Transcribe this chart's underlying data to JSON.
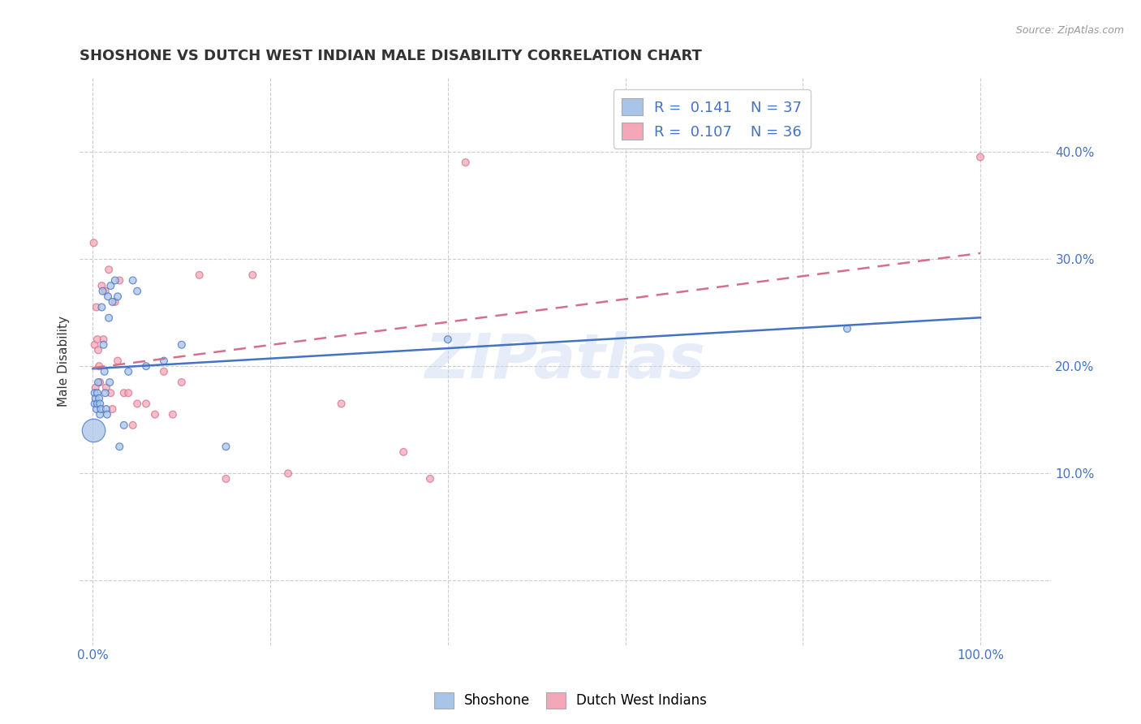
{
  "title": "SHOSHONE VS DUTCH WEST INDIAN MALE DISABILITY CORRELATION CHART",
  "source": "Source: ZipAtlas.com",
  "ylabel": "Male Disability",
  "watermark": "ZIPatlas",
  "legend_r1_val": "0.141",
  "legend_n1_val": "37",
  "legend_r2_val": "0.107",
  "legend_n2_val": "36",
  "shoshone_color": "#a8c4e8",
  "dutch_color": "#f4a7b9",
  "shoshone_line_color": "#4472c4",
  "dutch_line_color": "#d4708a",
  "yticks": [
    0.0,
    0.1,
    0.2,
    0.3,
    0.4
  ],
  "ytick_labels": [
    "",
    "10.0%",
    "20.0%",
    "30.0%",
    "40.0%"
  ],
  "ymin": -0.06,
  "ymax": 0.47,
  "xmin": -0.015,
  "xmax": 1.08,
  "shoshone_x": [
    0.002,
    0.002,
    0.003,
    0.004,
    0.005,
    0.005,
    0.006,
    0.007,
    0.008,
    0.008,
    0.009,
    0.01,
    0.011,
    0.012,
    0.013,
    0.014,
    0.015,
    0.016,
    0.017,
    0.018,
    0.019,
    0.02,
    0.022,
    0.025,
    0.028,
    0.03,
    0.035,
    0.04,
    0.045,
    0.05,
    0.06,
    0.08,
    0.1,
    0.15,
    0.4,
    0.85,
    0.001
  ],
  "shoshone_y": [
    0.175,
    0.165,
    0.17,
    0.16,
    0.175,
    0.165,
    0.185,
    0.17,
    0.155,
    0.165,
    0.16,
    0.255,
    0.27,
    0.22,
    0.195,
    0.175,
    0.16,
    0.155,
    0.265,
    0.245,
    0.185,
    0.275,
    0.26,
    0.28,
    0.265,
    0.125,
    0.145,
    0.195,
    0.28,
    0.27,
    0.2,
    0.205,
    0.22,
    0.125,
    0.225,
    0.235,
    0.14
  ],
  "shoshone_size": [
    40,
    40,
    40,
    40,
    40,
    40,
    40,
    40,
    40,
    40,
    40,
    40,
    40,
    40,
    40,
    40,
    40,
    40,
    40,
    40,
    40,
    40,
    40,
    40,
    40,
    40,
    40,
    40,
    40,
    40,
    40,
    40,
    40,
    40,
    40,
    40,
    420
  ],
  "dutch_x": [
    0.001,
    0.002,
    0.003,
    0.004,
    0.005,
    0.006,
    0.007,
    0.008,
    0.01,
    0.012,
    0.014,
    0.015,
    0.018,
    0.02,
    0.022,
    0.025,
    0.028,
    0.03,
    0.035,
    0.04,
    0.045,
    0.05,
    0.06,
    0.07,
    0.08,
    0.09,
    0.1,
    0.12,
    0.15,
    0.18,
    0.22,
    0.28,
    0.35,
    0.38,
    0.42,
    1.0
  ],
  "dutch_y": [
    0.315,
    0.22,
    0.18,
    0.255,
    0.225,
    0.215,
    0.2,
    0.185,
    0.275,
    0.225,
    0.27,
    0.18,
    0.29,
    0.175,
    0.16,
    0.26,
    0.205,
    0.28,
    0.175,
    0.175,
    0.145,
    0.165,
    0.165,
    0.155,
    0.195,
    0.155,
    0.185,
    0.285,
    0.095,
    0.285,
    0.1,
    0.165,
    0.12,
    0.095,
    0.39,
    0.395
  ],
  "dutch_size": [
    40,
    40,
    40,
    40,
    40,
    40,
    40,
    40,
    40,
    40,
    40,
    40,
    40,
    40,
    40,
    40,
    40,
    40,
    40,
    40,
    40,
    40,
    40,
    40,
    40,
    40,
    40,
    40,
    40,
    40,
    40,
    40,
    40,
    40,
    40,
    40
  ],
  "grid_color": "#cccccc",
  "title_fontsize": 13,
  "title_color": "#333333",
  "axis_label_color": "#4472c4",
  "background_color": "#ffffff",
  "xtick_positions": [
    0.0,
    0.2,
    0.4,
    0.6,
    0.8,
    1.0
  ],
  "xtick_show_labels": [
    true,
    false,
    false,
    false,
    false,
    true
  ]
}
